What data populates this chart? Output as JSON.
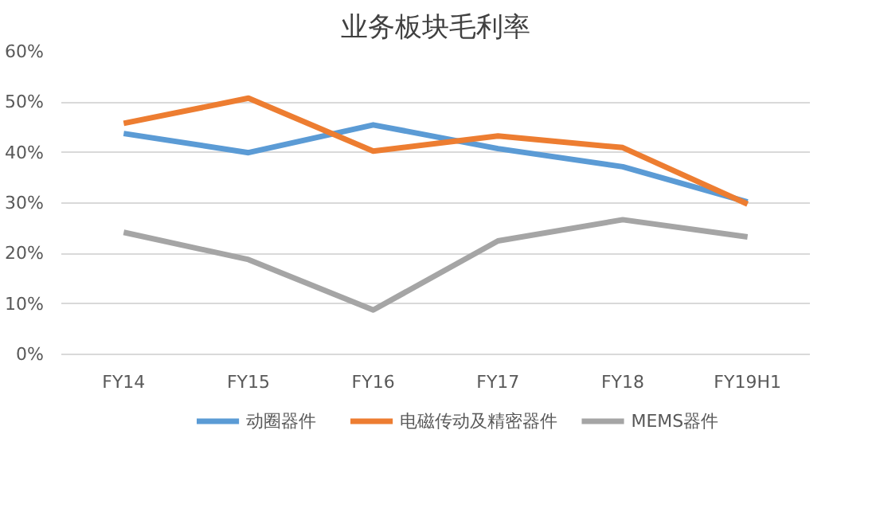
{
  "chart_data": {
    "type": "line",
    "title": "业务板块毛利率",
    "categories": [
      "FY14",
      "FY15",
      "FY16",
      "FY17",
      "FY18",
      "FY19H1"
    ],
    "series": [
      {
        "name": "动圈器件",
        "color": "#5b9bd5",
        "values": [
          43.8,
          40.0,
          45.5,
          40.8,
          37.2,
          30.2
        ]
      },
      {
        "name": "电磁传动及精密器件",
        "color": "#ed7d31",
        "values": [
          45.8,
          50.8,
          40.3,
          43.3,
          41.0,
          29.8
        ]
      },
      {
        "name": "MEMS器件",
        "color": "#a5a5a5",
        "values": [
          24.2,
          18.8,
          8.8,
          22.5,
          26.7,
          23.3
        ]
      }
    ],
    "ylim": [
      0,
      60
    ],
    "yticks": [
      {
        "value": 0,
        "label": "0%"
      },
      {
        "value": 10,
        "label": "10%"
      },
      {
        "value": 20,
        "label": "20%"
      },
      {
        "value": 30,
        "label": "30%"
      },
      {
        "value": 40,
        "label": "40%"
      },
      {
        "value": 50,
        "label": "50%"
      },
      {
        "value": 60,
        "label": "60%"
      }
    ],
    "grid": "y",
    "legend": "bottom",
    "marker": "none",
    "line_style": "solid"
  }
}
